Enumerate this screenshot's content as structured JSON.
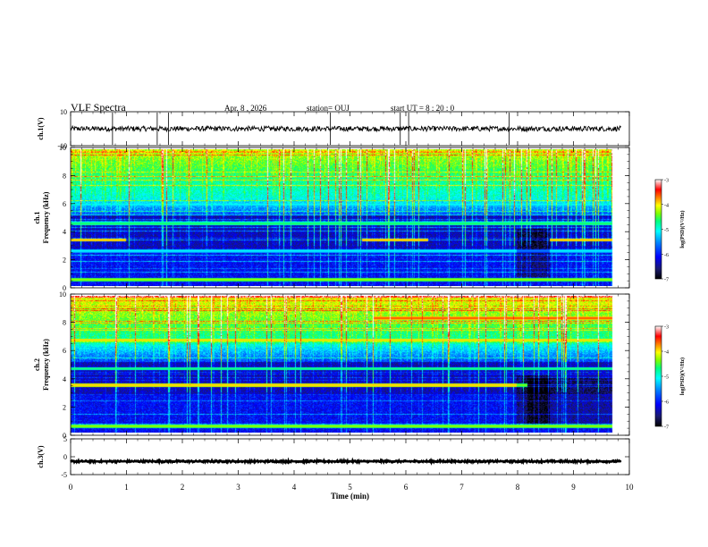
{
  "header": {
    "title": "VLF Spectra",
    "date": "Apr. 8 , 2026",
    "station": "station= OUJ",
    "start": "start UT = 8 : 20 : 0"
  },
  "colors": {
    "waveform": "#000000",
    "colormap": [
      "#000000",
      "#1a1a6e",
      "#0000ff",
      "#0080ff",
      "#00ffff",
      "#00ff80",
      "#80ff00",
      "#ffff00",
      "#ff8000",
      "#ff0000",
      "#ffffff"
    ]
  },
  "chart_data": [
    {
      "type": "line",
      "ylabel": "ch.1(V)",
      "ylim": [
        -10,
        10
      ],
      "yticks": [
        "10",
        "-10"
      ],
      "x_range_min": [
        0,
        9.85
      ],
      "baseline": 0,
      "noise_band": [
        -1.5,
        1.5
      ],
      "spikes_x_min": [
        0.75,
        1.55,
        1.75,
        4.65,
        5.9,
        6.05,
        7.85
      ]
    },
    {
      "type": "heatmap",
      "ylabel_top": "ch.1",
      "ylabel": "Frequency (kHz)",
      "xlim": [
        0,
        10
      ],
      "ylim": [
        0,
        10
      ],
      "yticks": [
        "0",
        "2",
        "4",
        "6",
        "8",
        "10"
      ],
      "data_extent_min": 9.85,
      "colorbar": {
        "label": "log(PSD)(V²/Hz)",
        "range": [
          -7,
          -3
        ],
        "ticks": [
          "-3",
          "-4",
          "-5",
          "-6",
          "-7"
        ]
      },
      "bands_khz": [
        {
          "f": 3.4,
          "level": -3.8,
          "segments": [
            [
              0,
              1
            ],
            [
              5.3,
              6.5
            ],
            [
              8.7,
              9.85
            ]
          ]
        },
        {
          "f": 4.6,
          "level": -4.5
        },
        {
          "f": 6.0,
          "level": -5.0
        },
        {
          "f": 2.6,
          "level": -5.0
        },
        {
          "f": 0.5,
          "level": -4.2
        }
      ]
    },
    {
      "type": "heatmap",
      "ylabel_top": "ch.2",
      "ylabel": "Frequency (kHz)",
      "xlim": [
        0,
        10
      ],
      "ylim": [
        0,
        10
      ],
      "yticks": [
        "0",
        "2",
        "4",
        "6",
        "8",
        "10"
      ],
      "data_extent_min": 9.85,
      "colorbar": {
        "label": "log(PSD)(V²/Hz)",
        "range": [
          -7,
          -3
        ],
        "ticks": [
          "-3",
          "-4",
          "-5",
          "-6",
          "-7"
        ]
      },
      "bands_khz": [
        {
          "f": 3.5,
          "level": -3.8,
          "segments": [
            [
              0,
              8.3
            ]
          ]
        },
        {
          "f": 6.8,
          "level": -3.9
        },
        {
          "f": 8.4,
          "level": -3.5,
          "segments": [
            [
              5.5,
              9.85
            ]
          ]
        },
        {
          "f": 4.7,
          "level": -4.6
        },
        {
          "f": 0.5,
          "level": -4.2
        }
      ]
    },
    {
      "type": "line",
      "ylabel": "ch.3(V)",
      "ylim": [
        -5,
        5
      ],
      "yticks": [
        "5",
        "0",
        "-5"
      ],
      "x_range_min": [
        0,
        9.85
      ],
      "baseline": -1.3,
      "noise_band": [
        -1.6,
        -1.0
      ]
    }
  ],
  "xaxis": {
    "label": "Time (min)",
    "range": [
      0,
      10
    ],
    "ticks": [
      "0",
      "1",
      "2",
      "3",
      "4",
      "5",
      "6",
      "7",
      "8",
      "9",
      "10"
    ]
  }
}
